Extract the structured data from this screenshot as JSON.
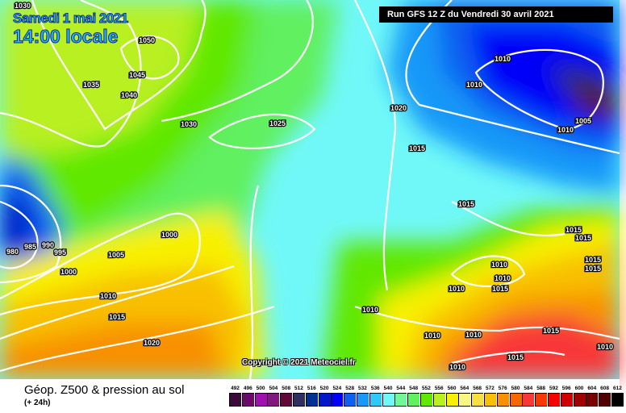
{
  "header": {
    "date": "Samedi 1 mai 2021",
    "time": "14:00 locale",
    "run": "Run GFS 12 Z du Vendredi 30 avril 2021"
  },
  "copyright": "Copyright © 2021 Meteociel.fr",
  "footer": {
    "title": "Géop. Z500 & pression au sol",
    "subtitle": "(+ 24h)"
  },
  "legend": {
    "values": [
      "492",
      "496",
      "500",
      "504",
      "508",
      "512",
      "516",
      "520",
      "524",
      "528",
      "532",
      "536",
      "540",
      "544",
      "548",
      "552",
      "556",
      "560",
      "564",
      "568",
      "572",
      "576",
      "580",
      "584",
      "588",
      "592",
      "596",
      "600",
      "604",
      "608",
      "612"
    ],
    "colors": [
      "#3a0a3a",
      "#6a0a6a",
      "#a010b0",
      "#801880",
      "#600838",
      "#303060",
      "#003090",
      "#0018c8",
      "#0000f8",
      "#1060f0",
      "#1898f8",
      "#30c8f8",
      "#70f8f8",
      "#70f898",
      "#60f060",
      "#60e800",
      "#b8f020",
      "#f8f000",
      "#f8f880",
      "#f8e040",
      "#f8c000",
      "#f89000",
      "#f86800",
      "#f83838",
      "#f83800",
      "#f80000",
      "#d00000",
      "#a00000",
      "#780000",
      "#500000",
      "#000000"
    ]
  },
  "isobar_labels": [
    "1030",
    "1050",
    "1045",
    "1035",
    "1040",
    "1030",
    "1025",
    "1020",
    "1010",
    "1010",
    "1005",
    "1010",
    "1015",
    "1015",
    "1000",
    "980",
    "985",
    "990",
    "995",
    "1005",
    "1000",
    "1010",
    "1015",
    "1020",
    "1015",
    "1015",
    "1015",
    "1015",
    "1010",
    "1010",
    "1015",
    "1010",
    "1010",
    "1010",
    "1010",
    "1015",
    "1015",
    "1010",
    "1010"
  ]
}
